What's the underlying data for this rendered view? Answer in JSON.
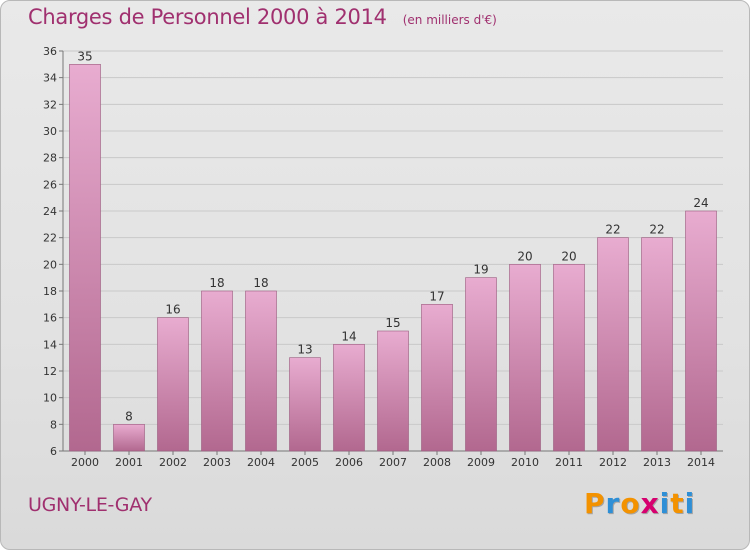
{
  "header": {
    "title": "Charges de Personnel 2000 à 2014",
    "subtitle": "(en milliers d'€)"
  },
  "footer": {
    "commune": "UGNY-LE-GAY",
    "logo": "Proxiti"
  },
  "colors": {
    "accent": "#a0306f",
    "bar_top": "#e8acd0",
    "bar_bottom": "#b2688f",
    "logo_letters": [
      "#f39200",
      "#2e8fd6",
      "#f39200",
      "#d6006f",
      "#2e8fd6",
      "#f39200",
      "#2e8fd6"
    ]
  },
  "chart_data": {
    "type": "bar",
    "title": "Charges de Personnel 2000 à 2014",
    "subtitle": "(en milliers d'€)",
    "xlabel": "",
    "ylabel": "",
    "categories": [
      "2000",
      "2001",
      "2002",
      "2003",
      "2004",
      "2005",
      "2006",
      "2007",
      "2008",
      "2009",
      "2010",
      "2011",
      "2012",
      "2013",
      "2014"
    ],
    "values": [
      35,
      8,
      16,
      18,
      18,
      13,
      14,
      15,
      17,
      19,
      20,
      20,
      22,
      22,
      24
    ],
    "ylim": [
      6,
      36
    ],
    "yticks": [
      6,
      8,
      10,
      12,
      14,
      16,
      18,
      20,
      22,
      24,
      26,
      28,
      30,
      32,
      34,
      36
    ],
    "grid": true,
    "legend": "none"
  }
}
